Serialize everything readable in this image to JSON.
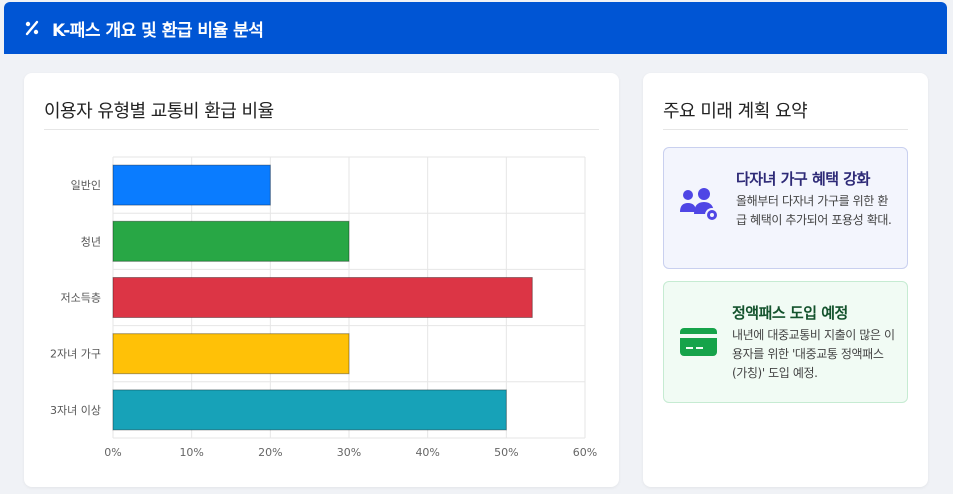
{
  "header": {
    "title": "K-패스 개요 및 환급 비율 분석",
    "icon": "percent-icon"
  },
  "chart_card": {
    "title": "이용자 유형별 교통비 환급 비율"
  },
  "chart_data": {
    "type": "bar",
    "orientation": "horizontal",
    "categories": [
      "일반인",
      "청년",
      "저소득층",
      "2자녀 가구",
      "3자녀 이상"
    ],
    "values": [
      20,
      30,
      53.3,
      30,
      50
    ],
    "colors": [
      "#0a7cff",
      "#28a745",
      "#dc3545",
      "#ffc107",
      "#17a2b8"
    ],
    "x_ticks": [
      "0%",
      "10%",
      "20%",
      "30%",
      "40%",
      "50%",
      "60%"
    ],
    "xlim": [
      0,
      60
    ],
    "grid": true
  },
  "plans_card": {
    "title": "주요 미래 계획 요약",
    "items": [
      {
        "title": "다자녀 가구 혜택 강화",
        "description": "올해부터 다자녀 가구를 위한 환급 혜택이 추가되어 포용성 확대.",
        "icon": "users-gear-icon",
        "accent": "#4f46e5"
      },
      {
        "title": "정액패스 도입 예정",
        "description": "내년에 대중교통비 지출이 많은 이용자를 위한 '대중교통 정액패스(가칭)' 도입 예정.",
        "icon": "credit-card-icon",
        "accent": "#16a34a"
      }
    ]
  }
}
